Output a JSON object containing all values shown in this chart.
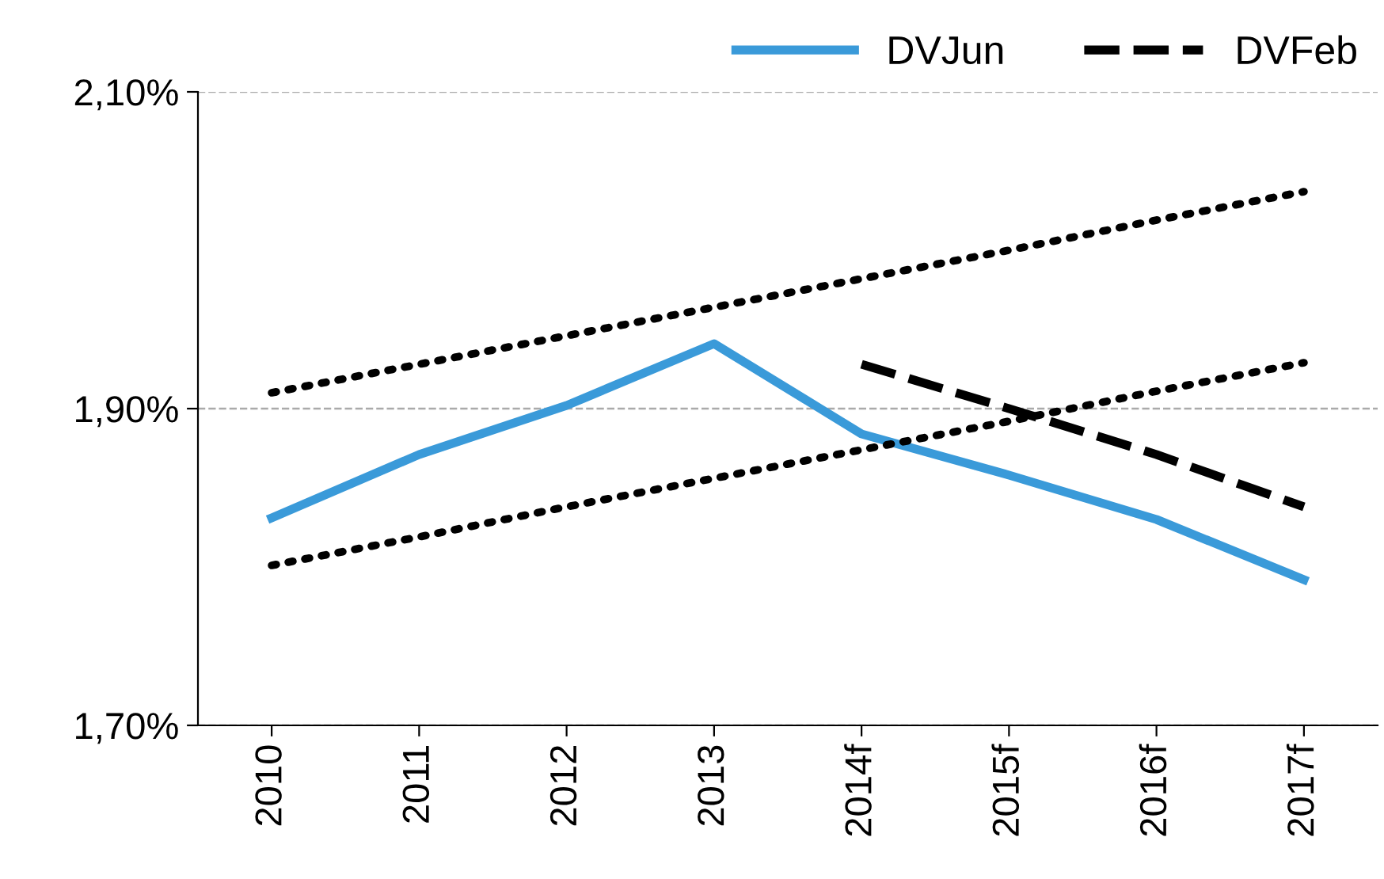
{
  "chart_data": {
    "type": "line",
    "categories": [
      "2010",
      "2011",
      "2012",
      "2013",
      "2014f",
      "2015f",
      "2016f",
      "2017f"
    ],
    "series": [
      {
        "name": "DVJun",
        "color": "#3a9ad9",
        "line_style": "solid",
        "values": [
          1.831,
          1.871,
          1.902,
          1.941,
          1.884,
          1.858,
          1.83,
          1.792
        ]
      },
      {
        "name": "DVFeb",
        "color": "#000000",
        "line_style": "dashed",
        "values": [
          null,
          null,
          null,
          null,
          1.928,
          1.9,
          1.871,
          1.838
        ]
      },
      {
        "color": "#000000",
        "line_style": "dotted",
        "values": [
          1.91,
          1.928,
          1.946,
          1.964,
          1.982,
          2.0,
          2.019,
          2.037
        ]
      },
      {
        "color": "#000000",
        "line_style": "dotted",
        "values": [
          1.801,
          1.819,
          1.838,
          1.856,
          1.874,
          1.892,
          1.911,
          1.929
        ]
      }
    ],
    "ylim": [
      1.7,
      2.1
    ],
    "yticks": [
      {
        "value": 1.7,
        "label": "1,70%"
      },
      {
        "value": 1.9,
        "label": "1,90%"
      },
      {
        "value": 2.1,
        "label": "2,10%"
      }
    ],
    "grid": "y",
    "legend": "top right",
    "marker": "none"
  }
}
